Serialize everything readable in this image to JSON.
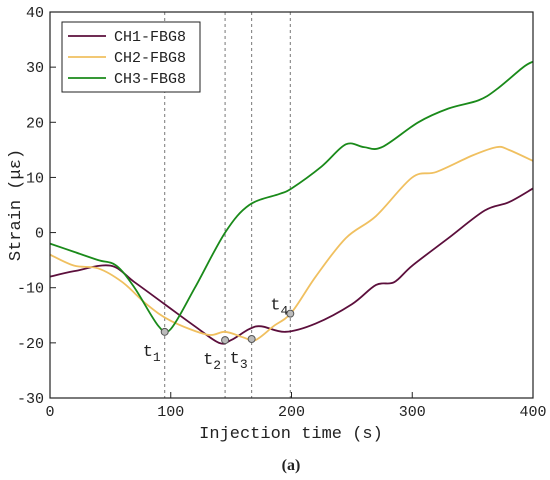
{
  "chart_data": {
    "type": "line",
    "x_label": "Injection time (s)",
    "y_label": "Strain (με)",
    "caption": "(a)",
    "xlim": [
      0,
      400
    ],
    "xticks": [
      0,
      100,
      200,
      300,
      400
    ],
    "ylim": [
      -30,
      40
    ],
    "yticks": [
      -30,
      -20,
      -10,
      0,
      10,
      20,
      30,
      40
    ],
    "legend": "upper left",
    "series": [
      {
        "name": "CH1-FBG8",
        "color": "#5c0f3c",
        "x": [
          0,
          20,
          50,
          70,
          95,
          120,
          140,
          150,
          165,
          175,
          195,
          220,
          250,
          270,
          285,
          300,
          330,
          360,
          380,
          400
        ],
        "values": [
          -8,
          -7,
          -6,
          -9,
          -13,
          -17,
          -20,
          -19.5,
          -17.5,
          -17,
          -18,
          -16.5,
          -13,
          -9.5,
          -9,
          -6,
          -1,
          4,
          5.5,
          8
        ]
      },
      {
        "name": "CH2-FBG8",
        "color": "#f0c060",
        "x": [
          0,
          20,
          40,
          60,
          80,
          100,
          130,
          145,
          160,
          170,
          185,
          200,
          220,
          245,
          270,
          300,
          320,
          350,
          370,
          380,
          400
        ],
        "values": [
          -4,
          -6,
          -6.5,
          -9,
          -13,
          -16,
          -18.5,
          -18,
          -19,
          -19.5,
          -17,
          -14.5,
          -8,
          -1,
          3,
          10,
          11,
          14,
          15.5,
          15,
          13
        ]
      },
      {
        "name": "CH3-FBG8",
        "color": "#1a8a1a",
        "x": [
          0,
          20,
          40,
          55,
          70,
          90,
          100,
          120,
          145,
          165,
          190,
          200,
          225,
          245,
          260,
          275,
          305,
          330,
          355,
          370,
          392,
          400
        ],
        "values": [
          -2,
          -3.5,
          -5,
          -6,
          -10,
          -17,
          -17.5,
          -10,
          0,
          5,
          7,
          8,
          12,
          16,
          15.5,
          15.5,
          20,
          22.5,
          24,
          26,
          30,
          31
        ]
      }
    ],
    "markers": [
      {
        "x": 95,
        "y": -18,
        "label": "t",
        "sub": "1"
      },
      {
        "x": 145,
        "y": -19.5,
        "label": "t",
        "sub": "2"
      },
      {
        "x": 167,
        "y": -19.3,
        "label": "t",
        "sub": "3"
      },
      {
        "x": 199,
        "y": -14.7,
        "label": "t",
        "sub": "4"
      }
    ]
  }
}
